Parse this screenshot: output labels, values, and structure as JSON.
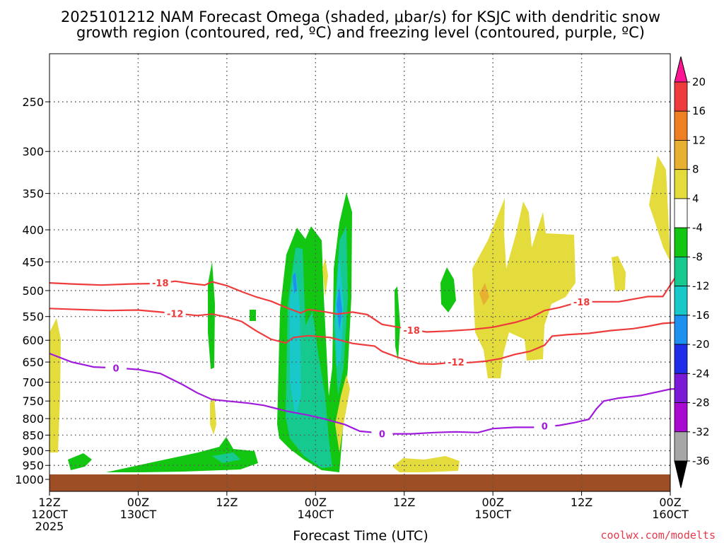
{
  "chart_data": {
    "type": "heatmap",
    "title": [
      "2025101212 NAM Forecast Omega (shaded, μbar/s) for KSJC with dendritic snow",
      "growth region (contoured, red, ºC) and freezing level (contoured, purple, ºC)"
    ],
    "xlabel": "Forecast Time (UTC)",
    "credit": "coolwx.com/modelts",
    "x_range_hours": [
      0,
      84
    ],
    "y_axis": {
      "scale": "log-pressure",
      "range_mb": [
        1010,
        200
      ],
      "ticks": [
        250,
        300,
        350,
        400,
        450,
        500,
        550,
        600,
        650,
        700,
        750,
        800,
        850,
        900,
        950,
        1000
      ]
    },
    "x_ticks": [
      {
        "h": 0,
        "line1": "12Z",
        "line2": "120CT",
        "line3": "2025"
      },
      {
        "h": 12,
        "line1": "00Z",
        "line2": "130CT",
        "line3": ""
      },
      {
        "h": 24,
        "line1": "12Z",
        "line2": "",
        "line3": ""
      },
      {
        "h": 36,
        "line1": "00Z",
        "line2": "140CT",
        "line3": ""
      },
      {
        "h": 48,
        "line1": "12Z",
        "line2": "",
        "line3": ""
      },
      {
        "h": 60,
        "line1": "00Z",
        "line2": "150CT",
        "line3": ""
      },
      {
        "h": 72,
        "line1": "12Z",
        "line2": "",
        "line3": ""
      },
      {
        "h": 84,
        "line1": "00Z",
        "line2": "160CT",
        "line3": ""
      }
    ],
    "colorbar": {
      "labels": [
        "20",
        "16",
        "12",
        "8",
        "4",
        "-4",
        "-8",
        "-12",
        "-16",
        "-20",
        "-24",
        "-28",
        "-32",
        "-36"
      ],
      "colors": [
        "#ff1493",
        "#ee3b3b",
        "#ee7f22",
        "#e8b030",
        "#e4db3c",
        "#ffffff",
        "#12c612",
        "#16c98e",
        "#19c8c8",
        "#1e90f0",
        "#1e2de8",
        "#7a1ad6",
        "#a80ad0",
        "#a6a6a6",
        "#000000"
      ]
    },
    "contours": [
      {
        "name": "-18",
        "color": "#ee3b3b",
        "label": "-18",
        "points": [
          [
            0,
            486
          ],
          [
            3,
            488
          ],
          [
            7,
            490
          ],
          [
            11,
            488
          ],
          [
            15,
            487
          ],
          [
            17,
            483
          ],
          [
            19,
            487
          ],
          [
            21,
            490
          ],
          [
            22,
            484
          ],
          [
            24,
            491
          ],
          [
            26,
            502
          ],
          [
            28,
            512
          ],
          [
            30,
            520
          ],
          [
            32,
            532
          ],
          [
            34,
            543
          ],
          [
            35,
            536
          ],
          [
            37,
            540
          ],
          [
            39,
            545
          ],
          [
            41,
            541
          ],
          [
            43,
            546
          ],
          [
            45,
            566
          ],
          [
            48,
            574
          ],
          [
            51,
            582
          ],
          [
            54,
            580
          ],
          [
            57,
            577
          ],
          [
            60,
            572
          ],
          [
            63,
            562
          ],
          [
            65,
            553
          ],
          [
            67,
            538
          ],
          [
            69,
            532
          ],
          [
            71,
            524
          ],
          [
            73,
            521
          ],
          [
            75,
            521
          ],
          [
            77,
            521
          ],
          [
            79,
            516
          ],
          [
            81,
            511
          ],
          [
            83,
            511
          ],
          [
            84,
            490
          ],
          [
            85,
            470
          ]
        ],
        "labels": [
          {
            "h": 15,
            "p": 486
          },
          {
            "h": 49,
            "p": 578
          },
          {
            "h": 72,
            "p": 521
          }
        ]
      },
      {
        "name": "-12",
        "color": "#ee3b3b",
        "label": "-12",
        "points": [
          [
            0,
            534
          ],
          [
            4,
            536
          ],
          [
            8,
            538
          ],
          [
            12,
            537
          ],
          [
            15,
            541
          ],
          [
            18,
            545
          ],
          [
            20,
            548
          ],
          [
            22,
            545
          ],
          [
            24,
            551
          ],
          [
            26,
            560
          ],
          [
            28,
            580
          ],
          [
            30,
            598
          ],
          [
            32,
            606
          ],
          [
            33,
            594
          ],
          [
            35,
            590
          ],
          [
            38,
            594
          ],
          [
            41,
            607
          ],
          [
            44,
            613
          ],
          [
            45,
            625
          ],
          [
            47,
            638
          ],
          [
            50,
            654
          ],
          [
            52,
            655
          ],
          [
            54,
            652
          ],
          [
            57,
            651
          ],
          [
            59,
            648
          ],
          [
            61,
            642
          ],
          [
            63,
            632
          ],
          [
            65,
            625
          ],
          [
            67,
            611
          ],
          [
            68,
            591
          ],
          [
            70,
            588
          ],
          [
            73,
            585
          ],
          [
            76,
            579
          ],
          [
            79,
            575
          ],
          [
            81,
            570
          ],
          [
            83,
            564
          ],
          [
            85,
            562
          ]
        ],
        "labels": [
          {
            "h": 17,
            "p": 544
          },
          {
            "h": 55,
            "p": 650
          }
        ]
      },
      {
        "name": "0",
        "color": "#a01adc",
        "label": "0",
        "points": [
          [
            0,
            630
          ],
          [
            3,
            650
          ],
          [
            6,
            662
          ],
          [
            9,
            664
          ],
          [
            12,
            668
          ],
          [
            15,
            678
          ],
          [
            18,
            706
          ],
          [
            20,
            728
          ],
          [
            22,
            746
          ],
          [
            25,
            752
          ],
          [
            27,
            756
          ],
          [
            29,
            762
          ],
          [
            32,
            778
          ],
          [
            35,
            790
          ],
          [
            37,
            800
          ],
          [
            40,
            818
          ],
          [
            42,
            838
          ],
          [
            44,
            842
          ],
          [
            46,
            846
          ],
          [
            49,
            846
          ],
          [
            52,
            842
          ],
          [
            55,
            840
          ],
          [
            58,
            842
          ],
          [
            60,
            830
          ],
          [
            63,
            826
          ],
          [
            66,
            826
          ],
          [
            69,
            820
          ],
          [
            71,
            812
          ],
          [
            73,
            802
          ],
          [
            74,
            772
          ],
          [
            75,
            750
          ],
          [
            77,
            742
          ],
          [
            80,
            735
          ],
          [
            84,
            718
          ],
          [
            86,
            716
          ]
        ],
        "labels": [
          {
            "h": 9,
            "p": 664
          },
          {
            "h": 45,
            "p": 846
          },
          {
            "h": 67,
            "p": 822
          }
        ]
      }
    ]
  }
}
